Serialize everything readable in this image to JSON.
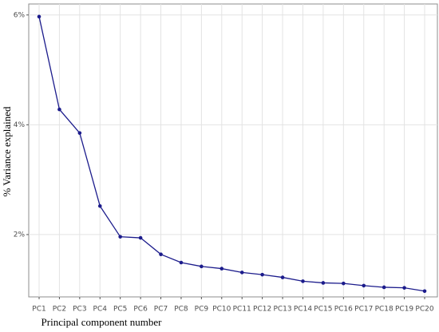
{
  "chart_data": {
    "type": "line",
    "x_label": "Principal component number",
    "y_label": "% Variance explained",
    "categories": [
      "PC1",
      "PC2",
      "PC3",
      "PC4",
      "PC5",
      "PC6",
      "PC7",
      "PC8",
      "PC9",
      "PC10",
      "PC11",
      "PC12",
      "PC13",
      "PC14",
      "PC15",
      "PC16",
      "PC17",
      "PC18",
      "PC19",
      "PC20"
    ],
    "series": [
      {
        "color": "#1c1c8c",
        "values": [
          5.97,
          4.28,
          3.85,
          2.52,
          1.96,
          1.94,
          1.64,
          1.49,
          1.42,
          1.38,
          1.31,
          1.27,
          1.22,
          1.15,
          1.12,
          1.11,
          1.07,
          1.04,
          1.03,
          0.97
        ]
      }
    ],
    "ylim": [
      0.865,
      6.2
    ],
    "yticks": [
      {
        "value": 2,
        "label": "2%"
      },
      {
        "value": 4,
        "label": "4%"
      },
      {
        "value": 6,
        "label": "6%"
      }
    ],
    "grid": true
  }
}
